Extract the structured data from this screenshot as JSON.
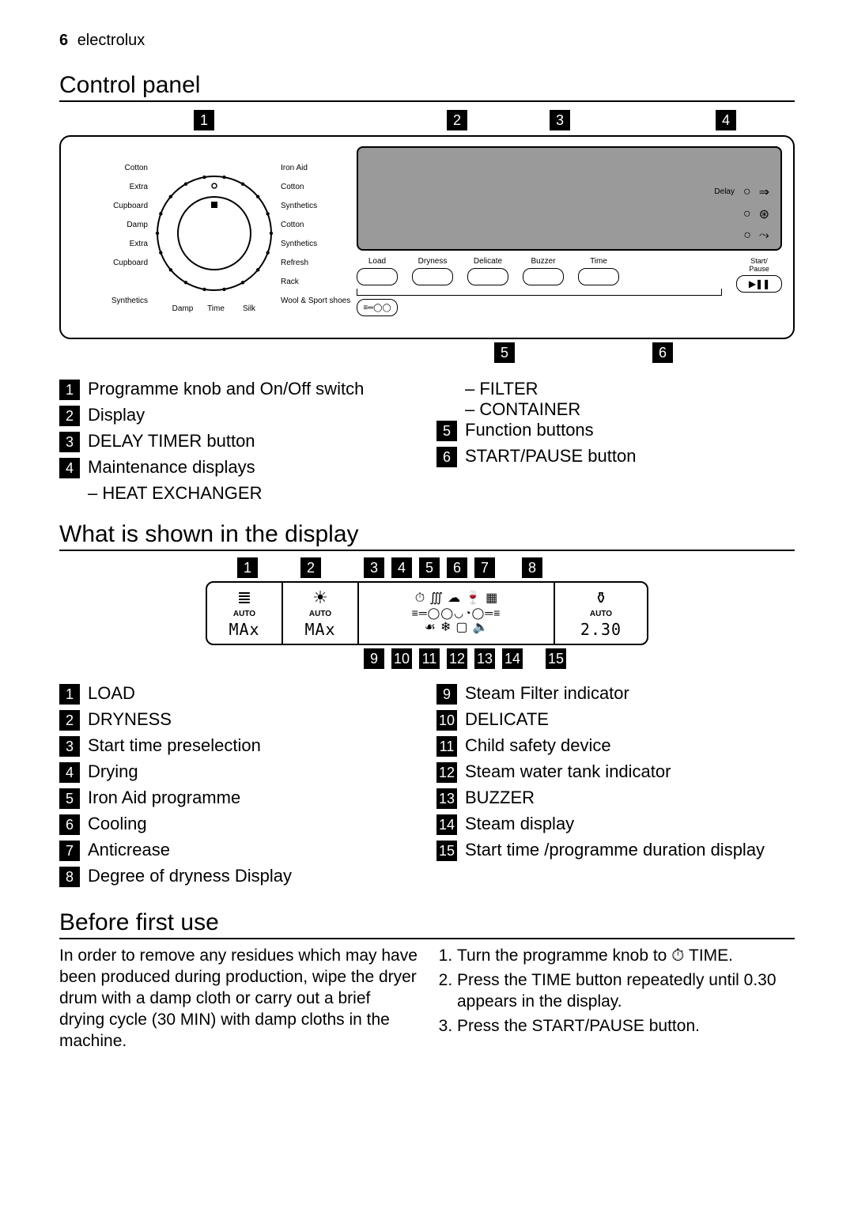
{
  "header": {
    "page_number": "6",
    "brand": "electrolux"
  },
  "sections": {
    "control_panel": "Control panel",
    "display": "What is shown in the display",
    "before_first_use": "Before first use"
  },
  "control_panel": {
    "callouts_top": {
      "1": 170,
      "2": 490,
      "3": 620,
      "4": 830
    },
    "callouts_bottom": {
      "5": 550,
      "6": 750
    },
    "knob": {
      "dot_positions_deg": [
        270,
        290,
        310,
        330,
        350,
        10,
        30,
        50,
        70,
        90,
        110,
        130,
        150,
        170,
        190,
        210,
        230,
        250
      ],
      "left_labels": [
        "Cotton",
        "Extra",
        "Cupboard",
        "Damp",
        "Extra",
        "Cupboard",
        "",
        "Synthetics"
      ],
      "right_labels": [
        "Iron Aid",
        "Cotton",
        "Synthetics",
        "Cotton",
        "Synthetics",
        "Refresh",
        "Rack",
        "Wool & Sport shoes"
      ],
      "bottom_labels": [
        "Damp",
        "Time",
        "Silk"
      ]
    },
    "lcd": {
      "delay_label": "Delay",
      "side_icons": [
        "⇒",
        "⊛",
        "⤳"
      ]
    },
    "function_buttons": [
      "Load",
      "Dryness",
      "Delicate",
      "Buzzer",
      "Time"
    ],
    "function_row_icon": "≡═◯◯",
    "start_pause": {
      "label": "Start/\nPause",
      "icon": "▶❚❚"
    }
  },
  "legend_cp": {
    "left": [
      {
        "n": "1",
        "text": "Programme knob and On/Off switch"
      },
      {
        "n": "2",
        "text": "Display"
      },
      {
        "n": "3",
        "text": "DELAY TIMER button"
      },
      {
        "n": "4",
        "text": "Maintenance displays",
        "subs": [
          "– HEAT EXCHANGER"
        ]
      }
    ],
    "right_pre": [
      "– FILTER",
      "– CONTAINER"
    ],
    "right": [
      {
        "n": "5",
        "text": "Function buttons"
      },
      {
        "n": "6",
        "text": "START/PAUSE button"
      }
    ]
  },
  "display_diagram": {
    "callouts_top": {
      "1": 40,
      "2": 120,
      "3": 200,
      "4": 235,
      "5": 270,
      "6": 305,
      "7": 340,
      "8": 400
    },
    "callouts_bottom": {
      "9": 200,
      "10": 235,
      "11": 270,
      "12": 305,
      "13": 340,
      "14": 375,
      "15": 430
    },
    "seg1": {
      "auto": "AUTO",
      "max": "MAx",
      "icon": "≣"
    },
    "seg2": {
      "auto": "AUTO",
      "max": "MAx",
      "icon": "☀"
    },
    "seg3": {
      "row1": [
        "⏱",
        "∭",
        "☁",
        "🍷",
        "▦"
      ],
      "row2": "≡═◯◯◡◔◯═≡",
      "row3": [
        "☙",
        "❄",
        "▢",
        "🔈"
      ]
    },
    "seg4": {
      "auto": "AUTO",
      "time": "2.30",
      "icon": "⚱"
    }
  },
  "legend_disp": {
    "left": [
      {
        "n": "1",
        "text": "LOAD"
      },
      {
        "n": "2",
        "text": "DRYNESS"
      },
      {
        "n": "3",
        "text": "Start time preselection"
      },
      {
        "n": "4",
        "text": "Drying"
      },
      {
        "n": "5",
        "text": "Iron Aid programme"
      },
      {
        "n": "6",
        "text": "Cooling"
      },
      {
        "n": "7",
        "text": "Anticrease"
      },
      {
        "n": "8",
        "text": "Degree of dryness Display"
      }
    ],
    "right": [
      {
        "n": "9",
        "text": "Steam Filter indicator"
      },
      {
        "n": "10",
        "text": "DELICATE"
      },
      {
        "n": "11",
        "text": "Child safety device"
      },
      {
        "n": "12",
        "text": "Steam water tank indicator"
      },
      {
        "n": "13",
        "text": "BUZZER"
      },
      {
        "n": "14",
        "text": "Steam display"
      },
      {
        "n": "15",
        "text": "Start time /programme duration display"
      }
    ]
  },
  "before_first_use": {
    "intro": "In order to remove any residues which may have been produced during production, wipe the dryer drum with a damp cloth or carry out a brief drying cycle (30 MIN) with damp cloths in the machine.",
    "steps": [
      "Turn the programme knob to ⏱ TIME.",
      "Press the TIME button repeatedly until 0.30 appears in the display.",
      "Press the START/PAUSE button."
    ]
  },
  "colors": {
    "ink": "#000000",
    "bg": "#ffffff",
    "lcd": "#9a9a9a"
  }
}
